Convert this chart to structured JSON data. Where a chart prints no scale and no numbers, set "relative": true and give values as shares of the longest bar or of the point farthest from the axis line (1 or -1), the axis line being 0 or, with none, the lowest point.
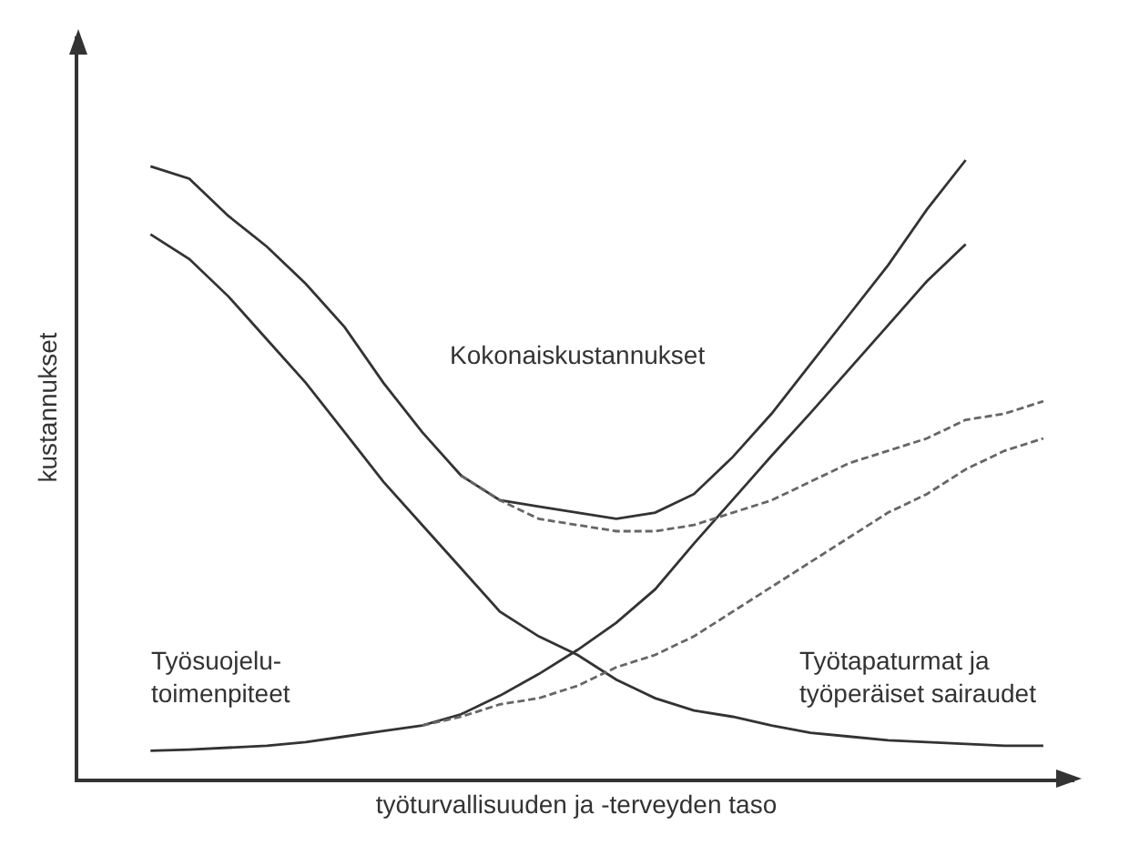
{
  "chart_data": {
    "type": "line",
    "relative": true,
    "xlabel": "työturvallisuuden ja -terveyden taso",
    "ylabel": "kustannukset",
    "categories": [
      null,
      null,
      null,
      null,
      null,
      null,
      null,
      null,
      null,
      null,
      null,
      null,
      null,
      null,
      null,
      null,
      null,
      null,
      null,
      null,
      null,
      null,
      null,
      null
    ],
    "series": [
      {
        "name": "Kokonaiskustannukset",
        "color": "#333333",
        "line_style": "solid",
        "values": [
          0.99,
          0.97,
          0.91,
          0.86,
          0.8,
          0.73,
          0.64,
          0.56,
          0.49,
          0.45,
          0.44,
          0.43,
          0.42,
          0.43,
          0.46,
          0.52,
          0.59,
          0.67,
          0.75,
          0.83,
          0.92,
          1.0,
          null,
          null
        ]
      },
      {
        "name": "Työsuojelu-\ntoimenpiteet",
        "color": "#333333",
        "line_style": "solid",
        "values": [
          0.045,
          0.047,
          0.05,
          0.053,
          0.059,
          0.068,
          0.077,
          0.086,
          0.104,
          0.134,
          0.169,
          0.208,
          0.252,
          0.306,
          0.38,
          0.451,
          0.522,
          0.591,
          0.662,
          0.733,
          0.804,
          0.864,
          null,
          null
        ]
      },
      {
        "name": "Työtapaturmat ja\ntyöperäiset sairaudet",
        "color": "#333333",
        "line_style": "solid",
        "values": [
          0.88,
          0.84,
          0.78,
          0.71,
          0.64,
          0.56,
          0.48,
          0.41,
          0.34,
          0.27,
          0.23,
          0.2,
          0.16,
          0.13,
          0.11,
          0.1,
          0.086,
          0.074,
          0.068,
          0.062,
          0.059,
          0.056,
          0.053,
          0.053
        ]
      },
      {
        "color": "#666666",
        "line_style": "dashed",
        "values": [
          null,
          null,
          null,
          null,
          null,
          null,
          null,
          null,
          0.49,
          0.45,
          0.42,
          0.41,
          0.4,
          0.4,
          0.41,
          0.43,
          0.45,
          0.48,
          0.51,
          0.53,
          0.55,
          0.58,
          0.59,
          0.61
        ]
      },
      {
        "color": "#666666",
        "line_style": "dashed",
        "values": [
          null,
          null,
          null,
          null,
          null,
          null,
          null,
          0.086,
          0.1,
          0.12,
          0.13,
          0.15,
          0.18,
          0.2,
          0.23,
          0.27,
          0.31,
          0.35,
          0.39,
          0.43,
          0.46,
          0.5,
          0.53,
          0.55
        ]
      }
    ],
    "legend": false
  }
}
